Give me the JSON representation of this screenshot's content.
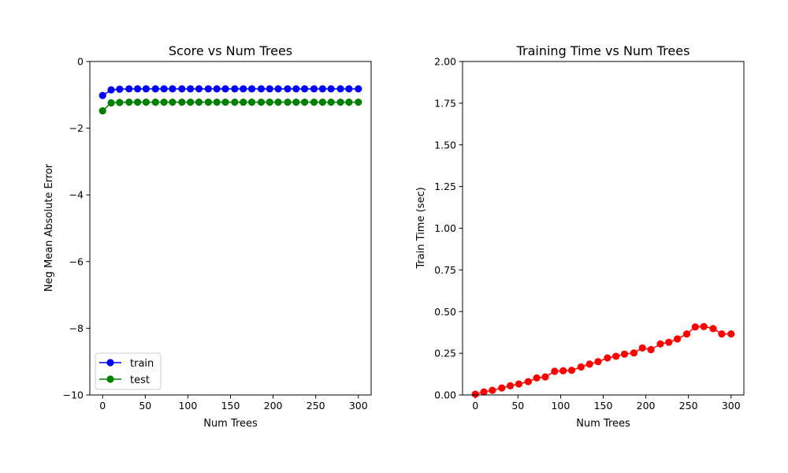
{
  "chart_data": [
    {
      "type": "line",
      "title": "Score vs Num Trees",
      "xlabel": "Num Trees",
      "ylabel": "Neg Mean Absolute Error",
      "xlim": [
        -15,
        315
      ],
      "ylim": [
        -10,
        0
      ],
      "xticks": [
        "0",
        "50",
        "100",
        "150",
        "200",
        "250",
        "300"
      ],
      "yticks": [
        "0",
        "−2",
        "−4",
        "−6",
        "−8",
        "−10"
      ],
      "legend": "lower-left",
      "grid": false,
      "x": [
        0,
        10,
        20,
        31,
        41,
        51,
        62,
        72,
        82,
        93,
        103,
        113,
        124,
        134,
        144,
        155,
        165,
        175,
        186,
        196,
        206,
        217,
        227,
        237,
        248,
        258,
        268,
        279,
        289,
        300
      ],
      "series": [
        {
          "name": "train",
          "color": "#0000ff",
          "values": [
            -1.02,
            -0.85,
            -0.83,
            -0.82,
            -0.82,
            -0.82,
            -0.82,
            -0.82,
            -0.82,
            -0.82,
            -0.82,
            -0.82,
            -0.82,
            -0.82,
            -0.82,
            -0.82,
            -0.82,
            -0.82,
            -0.82,
            -0.82,
            -0.82,
            -0.82,
            -0.82,
            -0.82,
            -0.82,
            -0.82,
            -0.82,
            -0.82,
            -0.82,
            -0.82
          ]
        },
        {
          "name": "test",
          "color": "#008000",
          "values": [
            -1.48,
            -1.24,
            -1.23,
            -1.22,
            -1.22,
            -1.22,
            -1.22,
            -1.22,
            -1.22,
            -1.22,
            -1.22,
            -1.22,
            -1.22,
            -1.22,
            -1.22,
            -1.22,
            -1.22,
            -1.22,
            -1.22,
            -1.22,
            -1.22,
            -1.22,
            -1.22,
            -1.22,
            -1.22,
            -1.22,
            -1.22,
            -1.22,
            -1.22,
            -1.22
          ]
        }
      ]
    },
    {
      "type": "line",
      "title": "Training Time vs Num Trees",
      "xlabel": "Num Trees",
      "ylabel": "Train Time (sec)",
      "xlim": [
        -15,
        315
      ],
      "ylim": [
        0,
        2
      ],
      "xticks": [
        "0",
        "50",
        "100",
        "150",
        "200",
        "250",
        "300"
      ],
      "yticks": [
        "0.00",
        "0.25",
        "0.50",
        "0.75",
        "1.00",
        "1.25",
        "1.50",
        "1.75",
        "2.00"
      ],
      "grid": false,
      "x": [
        0,
        10,
        20,
        31,
        41,
        51,
        62,
        72,
        82,
        93,
        103,
        113,
        124,
        134,
        144,
        155,
        165,
        175,
        186,
        196,
        206,
        217,
        227,
        237,
        248,
        258,
        268,
        279,
        289,
        300
      ],
      "series": [
        {
          "color": "#ff0000",
          "values": [
            0.005,
            0.018,
            0.028,
            0.042,
            0.055,
            0.066,
            0.08,
            0.102,
            0.108,
            0.142,
            0.145,
            0.148,
            0.168,
            0.185,
            0.2,
            0.222,
            0.232,
            0.245,
            0.252,
            0.282,
            0.272,
            0.306,
            0.316,
            0.336,
            0.366,
            0.408,
            0.41,
            0.398,
            0.366,
            0.366
          ]
        }
      ]
    }
  ]
}
